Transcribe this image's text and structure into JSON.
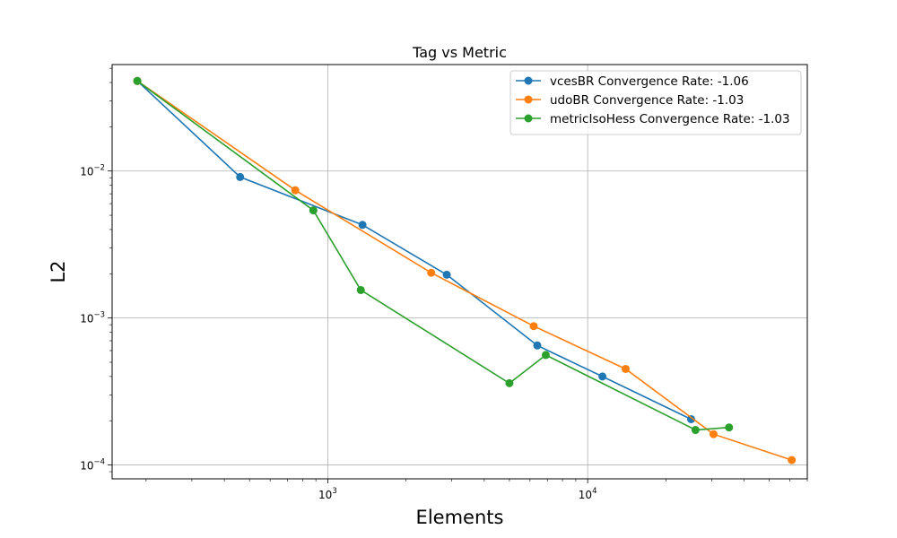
{
  "chart_data": {
    "type": "line",
    "title": "Tag vs Metric",
    "xlabel": "Elements",
    "ylabel": "L2",
    "xscale": "log",
    "yscale": "log",
    "xlim": [
      148,
      70000
    ],
    "ylim": [
      8.05e-05,
      0.053
    ],
    "grid": true,
    "legend_position": "top-right",
    "x_ticks": [
      {
        "value": 1000,
        "base": "10",
        "exp": "3"
      },
      {
        "value": 10000,
        "base": "10",
        "exp": "4"
      }
    ],
    "y_ticks": [
      {
        "value": 0.0001,
        "base": "10",
        "exp": "−4"
      },
      {
        "value": 0.001,
        "base": "10",
        "exp": "−3"
      },
      {
        "value": 0.01,
        "base": "10",
        "exp": "−2"
      }
    ],
    "series": [
      {
        "name": "vcesBR Convergence Rate: -1.06",
        "color": "#1f77b4",
        "x": [
          185,
          460,
          1360,
          2870,
          6400,
          11400,
          25000
        ],
        "y": [
          0.041,
          0.0091,
          0.0043,
          0.00197,
          0.00065,
          0.0004,
          0.000205
        ]
      },
      {
        "name": "udoBR Convergence Rate: -1.03",
        "color": "#ff7f0e",
        "x": [
          185,
          750,
          2500,
          6200,
          14000,
          30500,
          61000
        ],
        "y": [
          0.041,
          0.0074,
          0.00203,
          0.00088,
          0.00045,
          0.000162,
          0.000108
        ]
      },
      {
        "name": "metricIsoHess Convergence Rate: -1.03",
        "color": "#2ca02c",
        "x": [
          185,
          880,
          1340,
          5000,
          6900,
          26000,
          35000
        ],
        "y": [
          0.041,
          0.0054,
          0.00155,
          0.00036,
          0.00056,
          0.000173,
          0.00018
        ]
      }
    ]
  }
}
